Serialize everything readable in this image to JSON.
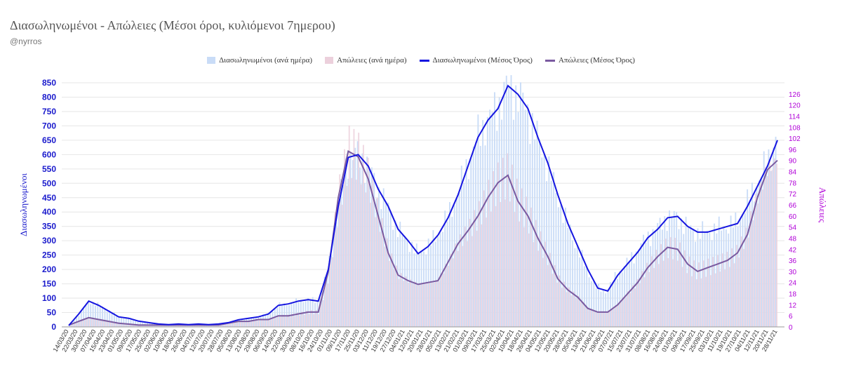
{
  "title": "Διασωληνωμένοι - Απώλειες (Μέσοι όροι, κυλιόμενοι 7ημερου)",
  "subtitle": "@nyrros",
  "colors": {
    "intubated_bar": "#c9dcf7",
    "deaths_bar": "#ecd0dc",
    "intubated_line": "#1515e0",
    "deaths_line": "#7a5aa0",
    "left_axis": "#1a1acc",
    "right_axis": "#b000d8"
  },
  "chart_data": {
    "type": "bar",
    "title": "Διασωληνωμένοι - Απώλειες (Μέσοι όροι, κυλιόμενοι 7ημερου)",
    "ylabel": "Διασωληνωμένοι",
    "y2label": "Απώλειες",
    "ylim": [
      0,
      850
    ],
    "y2lim": [
      0,
      132
    ],
    "y_ticks": [
      "0",
      "50",
      "100",
      "150",
      "200",
      "250",
      "300",
      "350",
      "400",
      "450",
      "500",
      "550",
      "600",
      "650",
      "700",
      "750",
      "800",
      "850"
    ],
    "y2_ticks": [
      "0",
      "6",
      "12",
      "18",
      "24",
      "30",
      "36",
      "42",
      "48",
      "54",
      "60",
      "66",
      "72",
      "78",
      "84",
      "90",
      "96",
      "102",
      "108",
      "114",
      "120",
      "126"
    ],
    "x_ticks": [
      "14/03/20",
      "22/03/20",
      "30/03/20",
      "07/04/20",
      "15/04/20",
      "23/04/20",
      "01/05/20",
      "09/05/20",
      "17/05/20",
      "25/05/20",
      "02/06/20",
      "10/06/20",
      "18/06/20",
      "26/06/20",
      "04/07/20",
      "12/07/20",
      "20/07/20",
      "28/07/20",
      "05/08/20",
      "13/08/20",
      "21/08/20",
      "29/08/20",
      "06/09/20",
      "14/09/20",
      "22/09/20",
      "30/09/20",
      "08/10/20",
      "16/10/20",
      "24/10/20",
      "01/11/20",
      "09/11/20",
      "17/11/20",
      "25/11/20",
      "03/12/20",
      "11/12/20",
      "19/12/20",
      "27/12/20",
      "04/01/21",
      "12/01/21",
      "20/01/21",
      "28/01/21",
      "05/02/21",
      "13/02/21",
      "21/02/21",
      "01/03/21",
      "09/03/21",
      "17/03/21",
      "25/03/21",
      "02/04/21",
      "10/04/21",
      "18/04/21",
      "26/04/21",
      "04/05/21",
      "12/05/21",
      "20/05/21",
      "28/05/21",
      "05/06/21",
      "13/06/21",
      "21/06/21",
      "29/06/21",
      "07/07/21",
      "15/07/21",
      "23/07/21",
      "31/07/21",
      "08/08/21",
      "16/08/21",
      "24/08/21",
      "01/09/21",
      "09/09/21",
      "17/09/21",
      "25/09/21",
      "03/10/21",
      "11/10/21",
      "19/10/21",
      "27/10/21",
      "04/11/21",
      "12/11/21",
      "20/11/21",
      "28/11/21"
    ],
    "grid": true,
    "legend_position": "top",
    "series": [
      {
        "name": "Διασωληνωμένοι (ανά ημέρα)",
        "kind": "bar",
        "axis": "left"
      },
      {
        "name": "Απώλειες (ανά ημέρα)",
        "kind": "bar",
        "axis": "right"
      },
      {
        "name": "Διασωληνωμένοι (Μέσος Όρος)",
        "kind": "line",
        "axis": "left",
        "values": [
          5,
          45,
          90,
          75,
          55,
          35,
          30,
          20,
          15,
          10,
          8,
          10,
          8,
          10,
          8,
          10,
          15,
          25,
          30,
          35,
          45,
          75,
          80,
          90,
          95,
          90,
          200,
          420,
          590,
          600,
          560,
          480,
          420,
          340,
          300,
          255,
          280,
          320,
          380,
          460,
          560,
          660,
          720,
          760,
          840,
          810,
          760,
          660,
          570,
          460,
          360,
          280,
          200,
          135,
          125,
          180,
          220,
          260,
          310,
          340,
          380,
          385,
          350,
          330,
          330,
          340,
          350,
          360,
          420,
          490,
          560,
          650
        ]
      },
      {
        "name": "Απώλειες (Μέσος Όρος)",
        "kind": "line",
        "axis": "right",
        "values": [
          1,
          3,
          5,
          4,
          3,
          2,
          1.5,
          1,
          1,
          1,
          1,
          1,
          1,
          1,
          1,
          1,
          2,
          3,
          3,
          4,
          4,
          6,
          6,
          7,
          8,
          8,
          30,
          70,
          95,
          92,
          80,
          60,
          40,
          28,
          25,
          23,
          24,
          25,
          35,
          45,
          52,
          60,
          70,
          78,
          82,
          68,
          60,
          48,
          38,
          26,
          20,
          16,
          10,
          8,
          8,
          12,
          18,
          24,
          32,
          38,
          43,
          42,
          34,
          30,
          32,
          34,
          36,
          40,
          50,
          70,
          85,
          90
        ]
      }
    ]
  },
  "legend": {
    "item1": "Διασωληνωμένοι (ανά ημέρα)",
    "item2": "Απώλειες (ανά ημέρα)",
    "item3": "Διασωληνωμένοι (Μέσος Όρος)",
    "item4": "Απώλειες (Μέσος Όρος)"
  }
}
